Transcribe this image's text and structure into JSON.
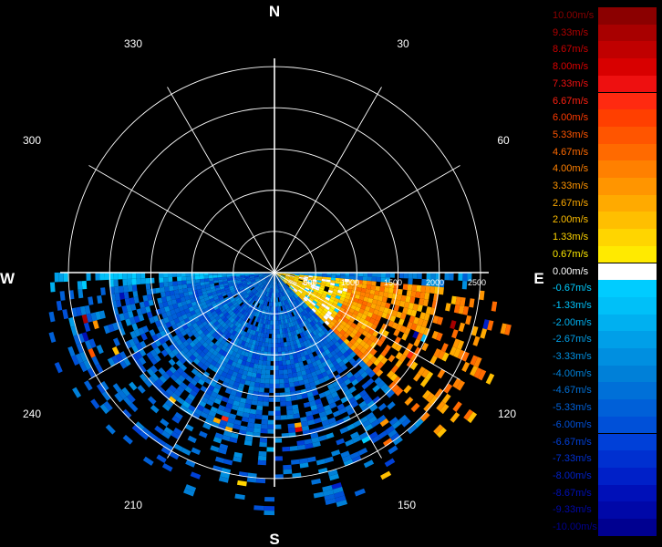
{
  "chart_data": {
    "type": "polar-ppi",
    "compass": {
      "north": "N",
      "east": "E",
      "south": "S",
      "west": "W"
    },
    "azimuth_labels": [
      "30",
      "60",
      "120",
      "150",
      "210",
      "240",
      "300",
      "330"
    ],
    "range_ticks": [
      "500",
      "1000",
      "1500",
      "2000",
      "2500"
    ],
    "range_max": 2600,
    "grid": true,
    "data_sector_deg": [
      90,
      270
    ],
    "data_summary": [
      {
        "azimuth_from": 95,
        "azimuth_to": 135,
        "velocity_ms": 3.5
      },
      {
        "azimuth_from": 135,
        "azimuth_to": 265,
        "velocity_ms": -5.0
      },
      {
        "azimuth_from": 260,
        "azimuth_to": 270,
        "velocity_ms": -2.0
      }
    ],
    "legend": [
      {
        "label": "10.00m/s",
        "color": "#8b0000",
        "text_color": "#8b0000"
      },
      {
        "label": "9.33m/s",
        "color": "#a80000",
        "text_color": "#b00000"
      },
      {
        "label": "8.67m/s",
        "color": "#c00000",
        "text_color": "#c80000"
      },
      {
        "label": "8.00m/s",
        "color": "#d80000",
        "text_color": "#dd0000"
      },
      {
        "label": "7.33m/s",
        "color": "#ee1010",
        "text_color": "#f01010"
      },
      {
        "label": "6.67m/s",
        "color": "#ff2a10",
        "text_color": "#ff2010"
      },
      {
        "label": "6.00m/s",
        "color": "#ff3f00",
        "text_color": "#ff3a00"
      },
      {
        "label": "5.33m/s",
        "color": "#ff5500",
        "text_color": "#ff5500"
      },
      {
        "label": "4.67m/s",
        "color": "#ff6a00",
        "text_color": "#ff6a00"
      },
      {
        "label": "4.00m/s",
        "color": "#ff8000",
        "text_color": "#ff8000"
      },
      {
        "label": "3.33m/s",
        "color": "#ff9500",
        "text_color": "#ff9500"
      },
      {
        "label": "2.67m/s",
        "color": "#ffaa00",
        "text_color": "#ffaa00"
      },
      {
        "label": "2.00m/s",
        "color": "#ffbf00",
        "text_color": "#ffbf00"
      },
      {
        "label": "1.33m/s",
        "color": "#ffd500",
        "text_color": "#ffd500"
      },
      {
        "label": "0.67m/s",
        "color": "#ffea00",
        "text_color": "#ffea00"
      },
      {
        "label": "0.00m/s",
        "color": "#ffffff",
        "text_color": "#ffffff"
      },
      {
        "label": "-0.67m/s",
        "color": "#00ccff",
        "text_color": "#00ccff"
      },
      {
        "label": "-1.33m/s",
        "color": "#00c0f8",
        "text_color": "#00c0f8"
      },
      {
        "label": "-2.00m/s",
        "color": "#00b0f0",
        "text_color": "#00b0f0"
      },
      {
        "label": "-2.67m/s",
        "color": "#009fe8",
        "text_color": "#009fe8"
      },
      {
        "label": "-3.33m/s",
        "color": "#008fe0",
        "text_color": "#008fe0"
      },
      {
        "label": "-4.00m/s",
        "color": "#0080d8",
        "text_color": "#0080d8"
      },
      {
        "label": "-4.67m/s",
        "color": "#0070d8",
        "text_color": "#0070d8"
      },
      {
        "label": "-5.33m/s",
        "color": "#0060d8",
        "text_color": "#0060d8"
      },
      {
        "label": "-6.00m/s",
        "color": "#0050d8",
        "text_color": "#0050d8"
      },
      {
        "label": "-6.67m/s",
        "color": "#0040d8",
        "text_color": "#0040d8"
      },
      {
        "label": "-7.33m/s",
        "color": "#0030d0",
        "text_color": "#0030d0"
      },
      {
        "label": "-8.00m/s",
        "color": "#0020c8",
        "text_color": "#0020c8"
      },
      {
        "label": "-8.67m/s",
        "color": "#0010b8",
        "text_color": "#0010b8"
      },
      {
        "label": "-9.33m/s",
        "color": "#0008a8",
        "text_color": "#0008a8"
      },
      {
        "label": "-10.00m/s",
        "color": "#000090",
        "text_color": "#000090"
      }
    ]
  }
}
